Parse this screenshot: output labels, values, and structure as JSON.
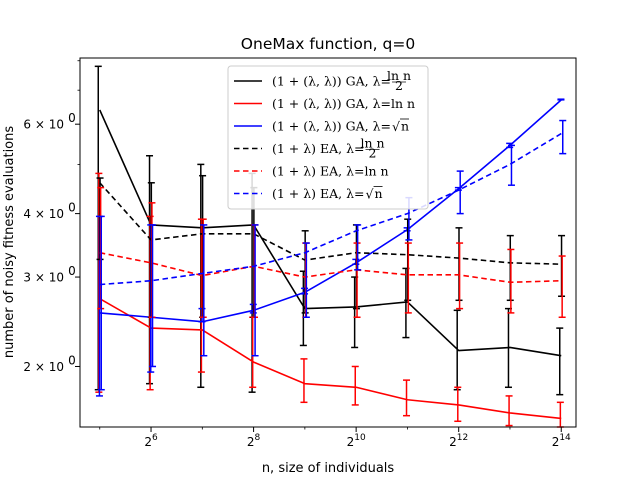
{
  "chart_data": {
    "type": "line",
    "title": "OneMax function, q=0",
    "xlabel": "n, size of individuals",
    "ylabel": "number of noisy fitness evaluations",
    "x_scale": "log2",
    "y_scale": "log",
    "xlim": [
      24.5,
      20000
    ],
    "ylim": [
      1.52,
      8.1
    ],
    "x_ticks": [
      {
        "value": 64,
        "base": "2",
        "exp": "6"
      },
      {
        "value": 256,
        "base": "2",
        "exp": "8"
      },
      {
        "value": 1024,
        "base": "2",
        "exp": "10"
      },
      {
        "value": 4096,
        "base": "2",
        "exp": "12"
      },
      {
        "value": 16384,
        "base": "2",
        "exp": "14"
      }
    ],
    "y_ticks": [
      {
        "value": 2,
        "mant": "2 × 10",
        "exp": "0"
      },
      {
        "value": 3,
        "mant": "3 × 10",
        "exp": "0"
      },
      {
        "value": 4,
        "mant": "4 × 10",
        "exp": "0"
      },
      {
        "value": 6,
        "mant": "6 × 10",
        "exp": "0"
      }
    ],
    "x": [
      32,
      64,
      128,
      256,
      512,
      1024,
      2048,
      4096,
      8192,
      16384
    ],
    "legend_position": "upper center",
    "grid": false,
    "series": [
      {
        "name": "(1 + (λ, λ)) GA, λ=ln n / 2",
        "legend_main": "(1 + (λ, λ)) GA, λ=",
        "legend_frac_num": "ln n",
        "legend_frac_den": "2",
        "color": "#000000",
        "dash": "solid",
        "values": [
          6.4,
          3.8,
          3.75,
          3.8,
          2.6,
          2.62,
          2.68,
          2.15,
          2.18,
          2.1
        ],
        "err_low": [
          1.8,
          1.85,
          1.82,
          1.78,
          2.2,
          2.18,
          2.28,
          1.8,
          1.82,
          1.76
        ],
        "err_high": [
          7.8,
          5.2,
          5.0,
          4.8,
          3.08,
          3.0,
          3.12,
          2.58,
          2.6,
          2.38
        ]
      },
      {
        "name": "(1 + (λ, λ)) GA, λ=ln n",
        "legend_main": "(1 + (λ, λ)) GA, λ=ln n",
        "color": "#ff0000",
        "dash": "solid",
        "values": [
          2.72,
          2.38,
          2.36,
          2.04,
          1.85,
          1.82,
          1.72,
          1.68,
          1.62,
          1.58
        ],
        "err_low": [
          1.78,
          1.8,
          1.95,
          1.82,
          1.7,
          1.68,
          1.6,
          1.56,
          1.53,
          1.52
        ],
        "err_high": [
          4.8,
          3.95,
          3.9,
          2.5,
          2.07,
          2.0,
          1.88,
          1.82,
          1.75,
          1.7
        ]
      },
      {
        "name": "(1 + (λ, λ)) GA, λ=√n",
        "legend_main": "(1 + (λ, λ)) GA, λ=",
        "legend_sqrt": "n",
        "color": "#0000ff",
        "dash": "solid",
        "values": [
          2.55,
          2.5,
          2.45,
          2.58,
          2.8,
          3.2,
          3.72,
          4.48,
          5.45,
          6.7
        ],
        "err_low": [
          1.75,
          1.95,
          2.45,
          2.55,
          2.78,
          3.18,
          3.7,
          4.45,
          5.4,
          6.7
        ],
        "err_high": [
          3.95,
          3.8,
          2.6,
          2.65,
          2.85,
          3.25,
          3.75,
          4.5,
          5.5,
          6.72
        ]
      },
      {
        "name": "(1 + λ) EA, λ=ln n / 2",
        "legend_main": "(1 + λ) EA, λ=",
        "legend_frac_num": "ln n",
        "legend_frac_den": "2",
        "color": "#000000",
        "dash": "dashed",
        "values": [
          4.6,
          3.55,
          3.65,
          3.65,
          3.24,
          3.35,
          3.32,
          3.27,
          3.2,
          3.18
        ],
        "err_low": [
          3.25,
          2.5,
          2.5,
          2.5,
          2.55,
          2.6,
          2.7,
          2.7,
          2.7,
          2.75
        ],
        "err_high": [
          4.7,
          4.6,
          4.75,
          4.5,
          3.7,
          3.8,
          3.9,
          3.75,
          3.62,
          3.62
        ]
      },
      {
        "name": "(1 + λ) EA, λ=ln n",
        "legend_main": "(1 + λ) EA, λ=ln n",
        "color": "#ff0000",
        "dash": "dashed",
        "values": [
          3.35,
          3.2,
          3.02,
          3.15,
          3.0,
          3.1,
          3.03,
          3.03,
          2.93,
          2.95
        ],
        "err_low": [
          2.6,
          2.5,
          2.5,
          2.5,
          2.5,
          2.5,
          2.55,
          2.6,
          2.55,
          2.5
        ],
        "err_high": [
          4.5,
          4.2,
          3.9,
          3.8,
          3.5,
          3.5,
          3.5,
          3.5,
          3.4,
          3.3
        ]
      },
      {
        "name": "(1 + λ) EA, λ=√n",
        "legend_main": "(1 + λ) EA, λ=",
        "legend_sqrt": "n",
        "color": "#0000ff",
        "dash": "dashed",
        "values": [
          2.9,
          2.95,
          3.05,
          3.15,
          3.35,
          3.7,
          4.0,
          4.45,
          5.0,
          5.75
        ],
        "err_low": [
          1.8,
          2.0,
          2.1,
          2.1,
          2.5,
          3.1,
          3.55,
          4.0,
          4.55,
          5.25
        ],
        "err_high": [
          3.95,
          3.8,
          3.8,
          3.8,
          3.5,
          3.8,
          4.3,
          4.85,
          5.45,
          6.1
        ]
      }
    ]
  }
}
